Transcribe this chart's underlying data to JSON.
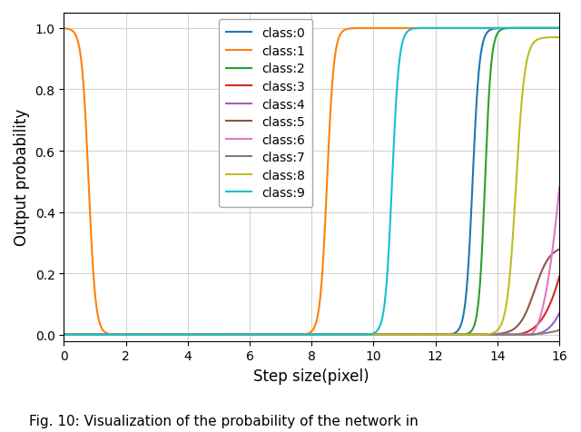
{
  "xlabel": "Step size(pixel)",
  "ylabel": "Output probability",
  "xlim": [
    0,
    16
  ],
  "ylim": [
    -0.02,
    1.05
  ],
  "xticks": [
    0,
    2,
    4,
    6,
    8,
    10,
    12,
    14,
    16
  ],
  "yticks": [
    0.0,
    0.2,
    0.4,
    0.6,
    0.8,
    1.0
  ],
  "classes": [
    "class:0",
    "class:1",
    "class:2",
    "class:3",
    "class:4",
    "class:5",
    "class:6",
    "class:7",
    "class:8",
    "class:9"
  ],
  "colors": [
    "#1f77b4",
    "#ff7f0e",
    "#2ca02c",
    "#d62728",
    "#9467bd",
    "#8c564b",
    "#e377c2",
    "#7f7f7f",
    "#bcbd22",
    "#17becf"
  ],
  "caption": "Fig. 10: Visualization of the probability of the network in",
  "figsize": [
    6.4,
    4.77
  ],
  "dpi": 100
}
